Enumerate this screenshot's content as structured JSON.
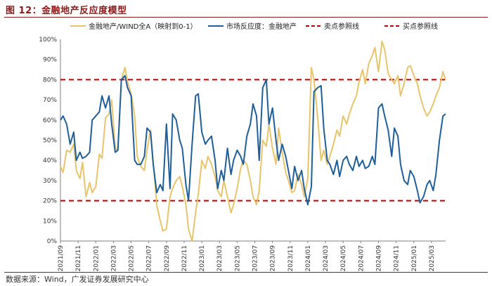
{
  "figure": {
    "title": "图 12：金融地产反应度模型",
    "source": "数据来源：Wind，广发证券发展研究中心"
  },
  "colors": {
    "gold": "#e8c46a",
    "blue": "#1f5f99",
    "red": "#c00000",
    "axis": "#7f7f7f"
  },
  "chart_data": {
    "type": "line",
    "title": "",
    "xlabel": "",
    "ylabel": "",
    "ylim": [
      0,
      100
    ],
    "yticks": [
      "0%",
      "10%",
      "20%",
      "30%",
      "40%",
      "50%",
      "60%",
      "70%",
      "80%",
      "90%",
      "100%"
    ],
    "ytick_values": [
      0,
      10,
      20,
      30,
      40,
      50,
      60,
      70,
      80,
      90,
      100
    ],
    "xticks": [
      "2021/09",
      "2021/11",
      "2022/01",
      "2022/03",
      "2022/05",
      "2022/07",
      "2022/09",
      "2022/11",
      "2023/01",
      "2023/03",
      "2023/05",
      "2023/07",
      "2023/09",
      "2023/11",
      "2024/01",
      "2024/03",
      "2024/05",
      "2024/07",
      "2024/09",
      "2024/11",
      "2025/01",
      "2025/03"
    ],
    "grid": false,
    "legend_position": "top",
    "x_range": [
      0,
      43.6
    ],
    "series": [
      {
        "name": "金融地产/WIND全A（映射到0-1）",
        "color": "#e8c46a",
        "x": [
          0,
          0.3,
          0.7,
          1.1,
          1.5,
          1.8,
          2.2,
          2.5,
          2.9,
          3.3,
          3.6,
          4.0,
          4.4,
          4.7,
          5.1,
          5.5,
          5.8,
          6.2,
          6.5,
          6.9,
          7.3,
          7.6,
          8.0,
          8.4,
          8.7,
          9.1,
          9.5,
          9.8,
          10.2,
          10.5,
          10.9,
          11.3,
          11.6,
          12.0,
          12.4,
          12.7,
          13.1,
          13.5,
          13.8,
          14.2,
          14.5,
          14.9,
          15.3,
          15.6,
          16.0,
          16.4,
          16.7,
          17.1,
          17.5,
          17.8,
          18.2,
          18.5,
          18.9,
          19.3,
          19.6,
          20.0,
          20.4,
          20.7,
          21.1,
          21.5,
          21.8,
          22.2,
          22.5,
          22.9,
          23.3,
          23.6,
          24.0,
          24.4,
          24.7,
          25.1,
          25.5,
          25.8,
          26.2,
          26.5,
          26.9,
          27.3,
          27.6,
          28.0,
          28.4,
          28.7,
          29.1,
          29.5,
          29.8,
          30.2,
          30.5,
          30.9,
          31.3,
          31.6,
          32.0,
          32.4,
          32.7,
          33.1,
          33.5,
          33.8,
          34.2,
          34.5,
          34.9,
          35.3,
          35.6,
          36.0,
          36.4,
          36.7,
          37.1,
          37.5,
          37.8,
          38.2,
          38.5,
          38.9,
          39.3,
          39.6,
          40.0,
          40.4,
          40.7,
          41.1,
          41.5,
          41.8,
          42.2,
          42.5,
          42.9,
          43.3,
          43.6
        ],
        "values": [
          37,
          34,
          45,
          44,
          48,
          35,
          31,
          39,
          22,
          29,
          24,
          27,
          43,
          41,
          61,
          63,
          70,
          46,
          45,
          80,
          86,
          79,
          73,
          62,
          42,
          37,
          35,
          45,
          55,
          39,
          18,
          10,
          5,
          6,
          22,
          26,
          30,
          32,
          27,
          18,
          6,
          0,
          14,
          23,
          40,
          36,
          42,
          38,
          32,
          25,
          22,
          30,
          22,
          14,
          18,
          26,
          36,
          40,
          38,
          30,
          22,
          18,
          25,
          50,
          47,
          58,
          46,
          38,
          56,
          44,
          34,
          30,
          24,
          25,
          33,
          28,
          22,
          31,
          86,
          80,
          62,
          40,
          45,
          38,
          42,
          48,
          55,
          52,
          62,
          58,
          63,
          68,
          72,
          79,
          85,
          78,
          88,
          92,
          96,
          84,
          99,
          95,
          83,
          80,
          78,
          82,
          72,
          78,
          86,
          87,
          82,
          78,
          72,
          66,
          62,
          64,
          68,
          72,
          76,
          84,
          80
        ]
      },
      {
        "name": "市场反应度：金融地产",
        "color": "#1f5f99",
        "x": [
          0,
          0.3,
          0.7,
          1.1,
          1.5,
          1.8,
          2.2,
          2.5,
          2.9,
          3.3,
          3.6,
          4.0,
          4.4,
          4.7,
          5.1,
          5.5,
          5.8,
          6.2,
          6.5,
          6.9,
          7.3,
          7.6,
          8.0,
          8.4,
          8.7,
          9.1,
          9.5,
          9.8,
          10.2,
          10.5,
          10.9,
          11.3,
          11.6,
          12.0,
          12.4,
          12.7,
          13.1,
          13.5,
          13.8,
          14.2,
          14.5,
          14.9,
          15.3,
          15.6,
          16.0,
          16.4,
          16.7,
          17.1,
          17.5,
          17.8,
          18.2,
          18.5,
          18.9,
          19.3,
          19.6,
          20.0,
          20.4,
          20.7,
          21.1,
          21.5,
          21.8,
          22.2,
          22.5,
          22.9,
          23.3,
          23.6,
          24.0,
          24.4,
          24.7,
          25.1,
          25.5,
          25.8,
          26.2,
          26.5,
          26.9,
          27.3,
          27.6,
          28.0,
          28.4,
          28.7,
          29.1,
          29.5,
          29.8,
          30.2,
          30.5,
          30.9,
          31.3,
          31.6,
          32.0,
          32.4,
          32.7,
          33.1,
          33.5,
          33.8,
          34.2,
          34.5,
          34.9,
          35.3,
          35.6,
          36.0,
          36.4,
          36.7,
          37.1,
          37.5,
          37.8,
          38.2,
          38.5,
          38.9,
          39.3,
          39.6,
          40.0,
          40.4,
          40.7,
          41.1,
          41.5,
          41.8,
          42.2,
          42.5,
          42.9,
          43.3,
          43.6
        ],
        "values": [
          60,
          62,
          58,
          48,
          54,
          40,
          44,
          41,
          42,
          44,
          60,
          62,
          64,
          72,
          66,
          72,
          58,
          44,
          45,
          80,
          82,
          76,
          72,
          40,
          38,
          38,
          42,
          56,
          54,
          38,
          24,
          28,
          25,
          58,
          26,
          63,
          60,
          50,
          46,
          28,
          20,
          48,
          72,
          73,
          54,
          48,
          50,
          52,
          40,
          26,
          35,
          30,
          46,
          33,
          40,
          45,
          42,
          38,
          52,
          58,
          68,
          62,
          40,
          76,
          80,
          58,
          66,
          50,
          40,
          48,
          42,
          35,
          26,
          37,
          30,
          35,
          26,
          18,
          27,
          74,
          76,
          77,
          56,
          40,
          38,
          33,
          40,
          32,
          40,
          42,
          38,
          35,
          42,
          37,
          40,
          36,
          37,
          42,
          38,
          66,
          68,
          62,
          55,
          42,
          56,
          52,
          38,
          30,
          28,
          35,
          32,
          25,
          19,
          22,
          28,
          30,
          25,
          33,
          50,
          62,
          63
        ]
      },
      {
        "name": "卖点参照线",
        "color": "#c00000",
        "dashed": true,
        "x": [
          0,
          43.6
        ],
        "values": [
          80,
          80
        ]
      },
      {
        "name": "买点参照线",
        "color": "#c00000",
        "dashed": true,
        "x": [
          0,
          43.6
        ],
        "values": [
          20,
          20
        ]
      }
    ]
  }
}
